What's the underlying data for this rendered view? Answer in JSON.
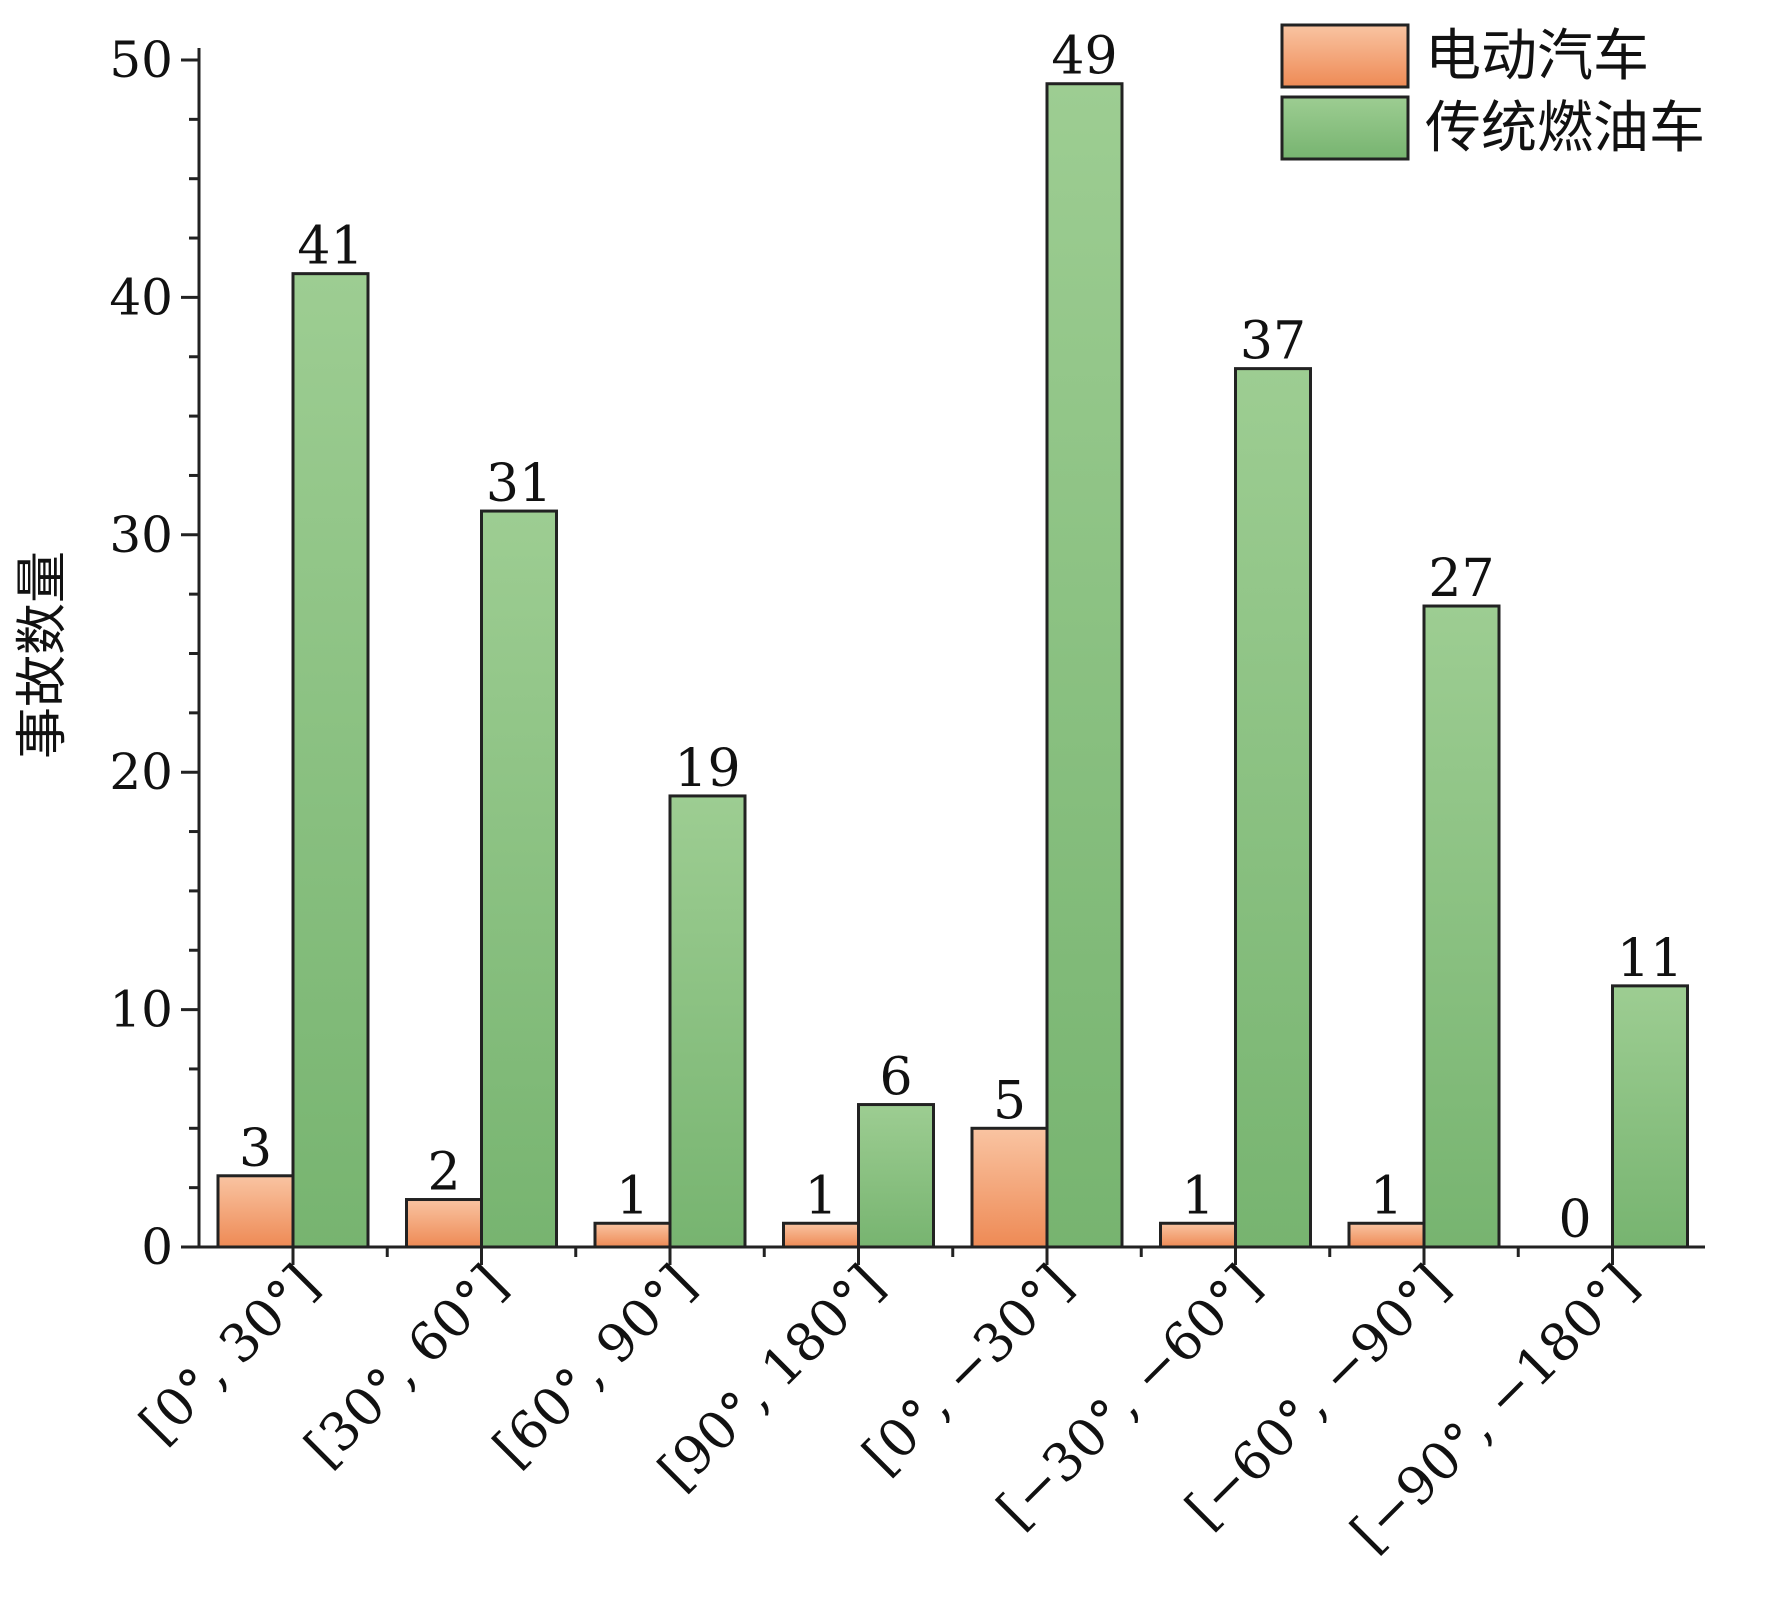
{
  "chart_data": {
    "type": "bar",
    "title": "",
    "xlabel": "",
    "ylabel": "事故数量",
    "ylim": [
      0,
      50
    ],
    "yticks": [
      0,
      10,
      20,
      30,
      40,
      50
    ],
    "grid": false,
    "legend_position": "top-right",
    "categories": [
      "[0°, 30°]",
      "[30°, 60°]",
      "[60°, 90°]",
      "[90°, 180°]",
      "[0°, −30°]",
      "[−30°, −60°]",
      "[−60°, −90°]",
      "[−90°, −180°]"
    ],
    "series": [
      {
        "name": "电动汽车",
        "values": [
          3,
          2,
          1,
          1,
          5,
          1,
          1,
          0
        ],
        "color": "#ef8d5a"
      },
      {
        "name": "传统燃油车",
        "values": [
          41,
          31,
          19,
          6,
          49,
          37,
          27,
          11
        ],
        "color": "#7fbb78"
      }
    ]
  }
}
